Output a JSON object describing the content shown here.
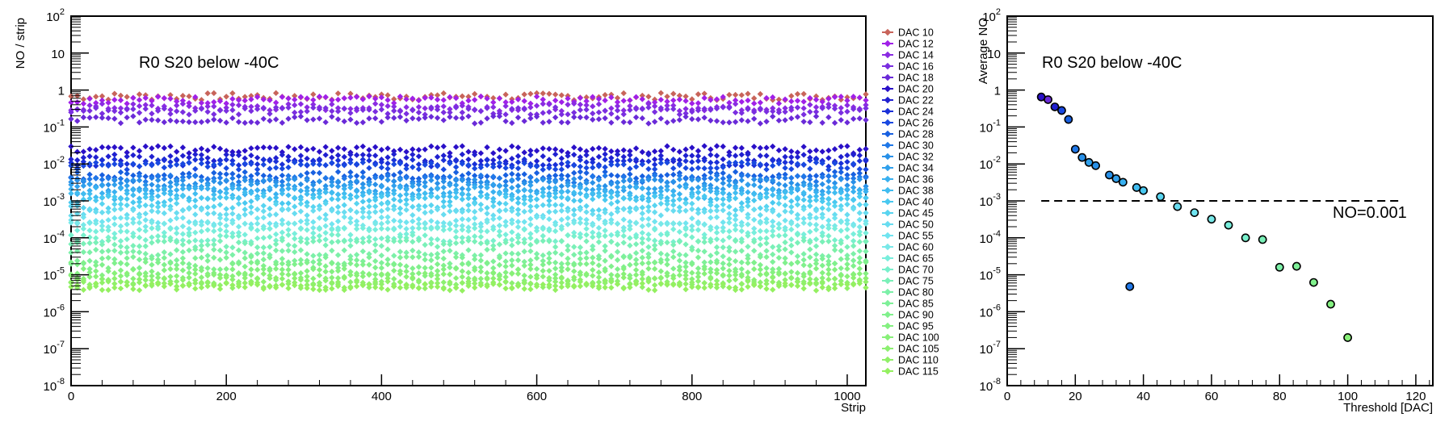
{
  "chart_data": [
    {
      "type": "scatter",
      "title": "R0 S20 below -40C",
      "xlabel": "Strip",
      "ylabel": "NO / strip",
      "xlim": [
        0,
        1024
      ],
      "ylim": [
        1e-08,
        100
      ],
      "yscale": "log",
      "x_ticks": [
        "0",
        "200",
        "400",
        "600",
        "800",
        "1000"
      ],
      "y_ticks": [
        {
          "base": "10",
          "exp": "-8"
        },
        {
          "base": "10",
          "exp": "-7"
        },
        {
          "base": "10",
          "exp": "-6"
        },
        {
          "base": "10",
          "exp": "-5"
        },
        {
          "base": "10",
          "exp": "-4"
        },
        {
          "base": "10",
          "exp": "-3"
        },
        {
          "base": "10",
          "exp": "-2"
        },
        {
          "base": "10",
          "exp": "-1"
        },
        {
          "base": "1",
          "exp": ""
        },
        {
          "base": "10",
          "exp": ""
        },
        {
          "base": "10",
          "exp": "2"
        }
      ],
      "legend_position": "right",
      "series": [
        {
          "name": "DAC 10",
          "color": "#c8645a",
          "level": 0.68
        },
        {
          "name": "DAC 12",
          "color": "#a020e8",
          "level": 0.55
        },
        {
          "name": "DAC 14",
          "color": "#8a2be2",
          "level": 0.35
        },
        {
          "name": "DAC 16",
          "color": "#7a2ee0",
          "level": 0.28
        },
        {
          "name": "DAC 18",
          "color": "#6a2ad8",
          "level": 0.16
        },
        {
          "name": "DAC 20",
          "color": "#2a10c8",
          "level": 0.025
        },
        {
          "name": "DAC 22",
          "color": "#2020d0",
          "level": 0.015
        },
        {
          "name": "DAC 24",
          "color": "#1a30d8",
          "level": 0.011
        },
        {
          "name": "DAC 26",
          "color": "#1848e0",
          "level": 0.009
        },
        {
          "name": "DAC 28",
          "color": "#1860e0",
          "level": 0.005
        },
        {
          "name": "DAC 30",
          "color": "#2078e8",
          "level": 0.004
        },
        {
          "name": "DAC 32",
          "color": "#2890e8",
          "level": 0.0032
        },
        {
          "name": "DAC 34",
          "color": "#30a0ec",
          "level": 0.0023
        },
        {
          "name": "DAC 36",
          "color": "#38b0f0",
          "level": 0.0019
        },
        {
          "name": "DAC 38",
          "color": "#40bcf0",
          "level": 0.0014
        },
        {
          "name": "DAC 40",
          "color": "#48c8f0",
          "level": 0.0011
        },
        {
          "name": "DAC 45",
          "color": "#58d4f0",
          "level": 0.0007
        },
        {
          "name": "DAC 50",
          "color": "#68dcf0",
          "level": 0.0005
        },
        {
          "name": "DAC 55",
          "color": "#70e4f0",
          "level": 0.0003
        },
        {
          "name": "DAC 60",
          "color": "#78e8e8",
          "level": 0.00022
        },
        {
          "name": "DAC 65",
          "color": "#78eedc",
          "level": 0.00015
        },
        {
          "name": "DAC 70",
          "color": "#78f0cc",
          "level": 0.0001
        },
        {
          "name": "DAC 75",
          "color": "#7af0b8",
          "level": 7e-05
        },
        {
          "name": "DAC 80",
          "color": "#7cf0a8",
          "level": 4e-05
        },
        {
          "name": "DAC 85",
          "color": "#7ef098",
          "level": 2.5e-05
        },
        {
          "name": "DAC 90",
          "color": "#80f08c",
          "level": 1.8e-05
        },
        {
          "name": "DAC 95",
          "color": "#84f080",
          "level": 1.2e-05
        },
        {
          "name": "DAC 100",
          "color": "#88f078",
          "level": 9e-06
        },
        {
          "name": "DAC 105",
          "color": "#8cf070",
          "level": 7e-06
        },
        {
          "name": "DAC 110",
          "color": "#90f068",
          "level": 5.5e-06
        },
        {
          "name": "DAC 115",
          "color": "#94f060",
          "level": 4.8e-06
        }
      ]
    },
    {
      "type": "scatter",
      "title": "R0 S20 below -40C",
      "xlabel": "Threshold [DAC]",
      "ylabel": "Average NO",
      "xlim": [
        0,
        125
      ],
      "ylim": [
        1e-08,
        100
      ],
      "yscale": "log",
      "x_ticks": [
        "0",
        "20",
        "40",
        "60",
        "80",
        "100",
        "120"
      ],
      "annotation": "NO=0.001",
      "reference_line": {
        "y": 0.001,
        "x_from": 10,
        "x_to": 115,
        "style": "dashed"
      },
      "points": [
        {
          "x": 10,
          "y": 0.65,
          "color": "#2a10c8"
        },
        {
          "x": 12,
          "y": 0.55,
          "color": "#6a2ad8"
        },
        {
          "x": 14,
          "y": 0.35,
          "color": "#2020d0"
        },
        {
          "x": 16,
          "y": 0.28,
          "color": "#1848e0"
        },
        {
          "x": 18,
          "y": 0.16,
          "color": "#1860e0"
        },
        {
          "x": 20,
          "y": 0.025,
          "color": "#2078e8"
        },
        {
          "x": 22,
          "y": 0.015,
          "color": "#2890e8"
        },
        {
          "x": 24,
          "y": 0.011,
          "color": "#30a0ec"
        },
        {
          "x": 26,
          "y": 0.009,
          "color": "#2890e8"
        },
        {
          "x": 30,
          "y": 0.005,
          "color": "#2890e8"
        },
        {
          "x": 32,
          "y": 0.004,
          "color": "#30a0ec"
        },
        {
          "x": 34,
          "y": 0.0032,
          "color": "#38b0f0"
        },
        {
          "x": 36,
          "y": 4.8e-06,
          "color": "#2078e8"
        },
        {
          "x": 38,
          "y": 0.0023,
          "color": "#40bcf0"
        },
        {
          "x": 40,
          "y": 0.0019,
          "color": "#48c8f0"
        },
        {
          "x": 45,
          "y": 0.0013,
          "color": "#58d4f0"
        },
        {
          "x": 50,
          "y": 0.0007,
          "color": "#68dcf0"
        },
        {
          "x": 55,
          "y": 0.00048,
          "color": "#70e4f0"
        },
        {
          "x": 60,
          "y": 0.00032,
          "color": "#78e8e8"
        },
        {
          "x": 65,
          "y": 0.00022,
          "color": "#78eedc"
        },
        {
          "x": 70,
          "y": 0.0001,
          "color": "#78f0cc"
        },
        {
          "x": 75,
          "y": 9e-05,
          "color": "#7af0b8"
        },
        {
          "x": 80,
          "y": 1.6e-05,
          "color": "#7cf0a8"
        },
        {
          "x": 85,
          "y": 1.7e-05,
          "color": "#7ef098"
        },
        {
          "x": 90,
          "y": 6.2e-06,
          "color": "#80f08c"
        },
        {
          "x": 95,
          "y": 1.6e-06,
          "color": "#84f080"
        },
        {
          "x": 100,
          "y": 2e-07,
          "color": "#88f078"
        }
      ]
    }
  ]
}
